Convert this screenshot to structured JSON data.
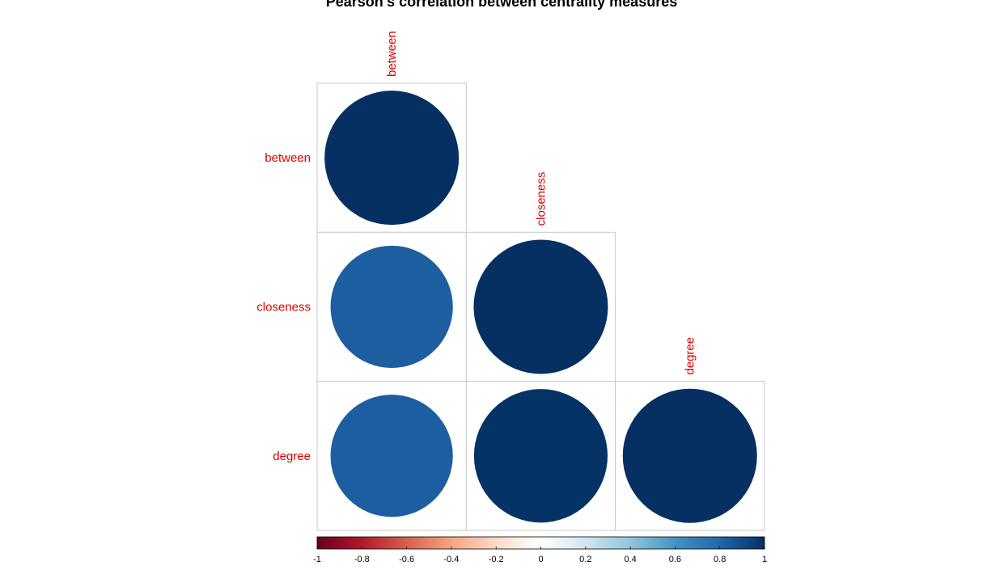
{
  "chart_data": {
    "type": "heatmap",
    "title": "Pearson's correlation between centrality measures",
    "variables": [
      "between",
      "closeness",
      "degree"
    ],
    "layout": "lower-triangle",
    "glyph": "circle",
    "matrix": [
      [
        1.0,
        null,
        null
      ],
      [
        0.83,
        1.0,
        null
      ],
      [
        0.83,
        0.99,
        1.0
      ]
    ],
    "colorbar": {
      "ticks": [
        "-1",
        "-0.8",
        "-0.6",
        "-0.4",
        "-0.2",
        "0",
        "0.2",
        "0.4",
        "0.6",
        "0.8",
        "1"
      ],
      "range": [
        -1,
        1
      ],
      "colors": [
        "#67001F",
        "#B2182B",
        "#D6604D",
        "#F4A582",
        "#FDDBC7",
        "#FFFFFF",
        "#D1E5F0",
        "#92C5DE",
        "#4393C3",
        "#2166AC",
        "#053061"
      ]
    },
    "label_color": "#e00000",
    "grid": true
  }
}
